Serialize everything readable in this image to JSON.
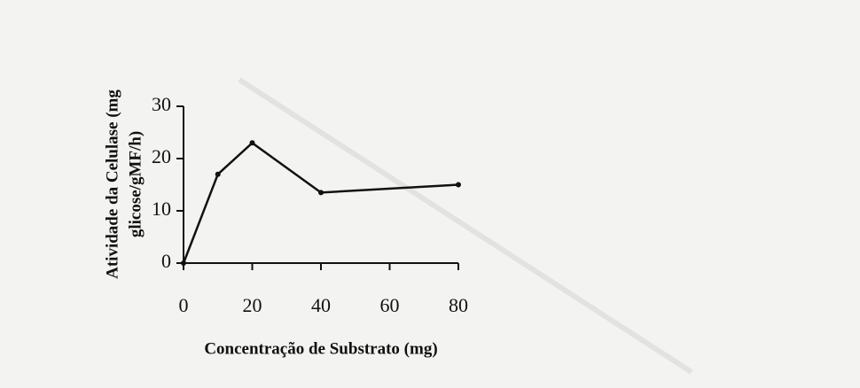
{
  "chart_data": {
    "type": "line",
    "xlabel": "Concentração de Substrato (mg)",
    "ylabel": [
      "Atividade da Celulase (mg",
      "glicose/gMF/h)"
    ],
    "x": [
      0,
      10,
      20,
      40,
      80
    ],
    "values": [
      0,
      17,
      23,
      13.5,
      15
    ],
    "color": "#111111",
    "xlim": [
      0,
      80
    ],
    "xticks": [
      0,
      20,
      40,
      60,
      80
    ],
    "ylim": [
      0,
      30
    ],
    "yticks": [
      0,
      10,
      20,
      30
    ]
  }
}
